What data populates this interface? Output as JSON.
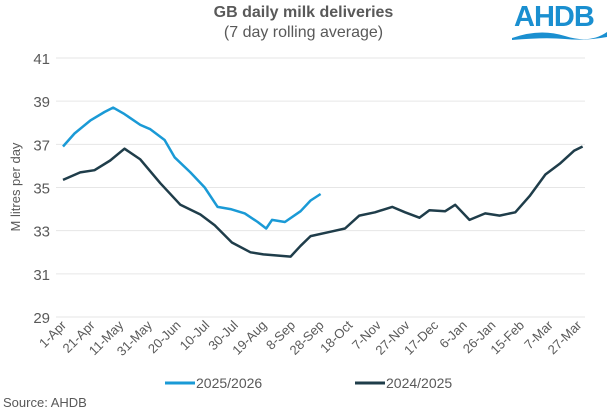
{
  "logo": {
    "text": "AHDB",
    "color": "#1a8fd0"
  },
  "source": "Source: AHDB",
  "chart_data": {
    "type": "line",
    "title": "GB daily milk deliveries",
    "subtitle": "(7 day rolling average)",
    "ylabel": "M litres per day",
    "xlabel": "",
    "ylim": [
      29,
      41
    ],
    "yticks": [
      29,
      31,
      33,
      35,
      37,
      39,
      41
    ],
    "xticks": [
      "1-Apr",
      "21-Apr",
      "11-May",
      "31-May",
      "20-Jun",
      "10-Jul",
      "30-Jul",
      "19-Aug",
      "8-Sep",
      "28-Sep",
      "18-Oct",
      "7-Nov",
      "27-Nov",
      "17-Dec",
      "6-Jan",
      "26-Jan",
      "15-Feb",
      "7-Mar",
      "27-Mar"
    ],
    "grid": true,
    "legend": "bottom",
    "series": [
      {
        "name": "2025/2026",
        "color": "#1a9ad6",
        "x_day_from_1_apr": [
          0,
          8,
          19,
          29,
          35,
          43,
          54,
          61,
          71,
          78,
          89,
          99,
          108,
          117,
          127,
          136,
          142,
          146,
          155,
          166,
          173,
          180
        ],
        "values": [
          36.9,
          37.5,
          38.1,
          38.5,
          38.7,
          38.4,
          37.9,
          37.7,
          37.2,
          36.4,
          35.7,
          35.0,
          34.1,
          34.0,
          33.8,
          33.4,
          33.1,
          33.5,
          33.4,
          33.9,
          34.4,
          34.7
        ]
      },
      {
        "name": "2024/2025",
        "color": "#1f3d4a",
        "x_day_from_1_apr": [
          0,
          12,
          22,
          33,
          43,
          54,
          68,
          82,
          96,
          106,
          118,
          131,
          140,
          159,
          166,
          173,
          187,
          197,
          207,
          218,
          230,
          239,
          249,
          256,
          267,
          274,
          284,
          295,
          305,
          316,
          326,
          337,
          347,
          357,
          363
        ],
        "values": [
          35.35,
          35.7,
          35.8,
          36.25,
          36.8,
          36.3,
          35.2,
          34.2,
          33.75,
          33.25,
          32.45,
          32.0,
          31.9,
          31.8,
          32.3,
          32.75,
          32.95,
          33.1,
          33.7,
          33.85,
          34.1,
          33.85,
          33.6,
          33.95,
          33.9,
          34.2,
          33.5,
          33.8,
          33.7,
          33.85,
          34.6,
          35.6,
          36.1,
          36.7,
          36.9
        ]
      }
    ]
  }
}
